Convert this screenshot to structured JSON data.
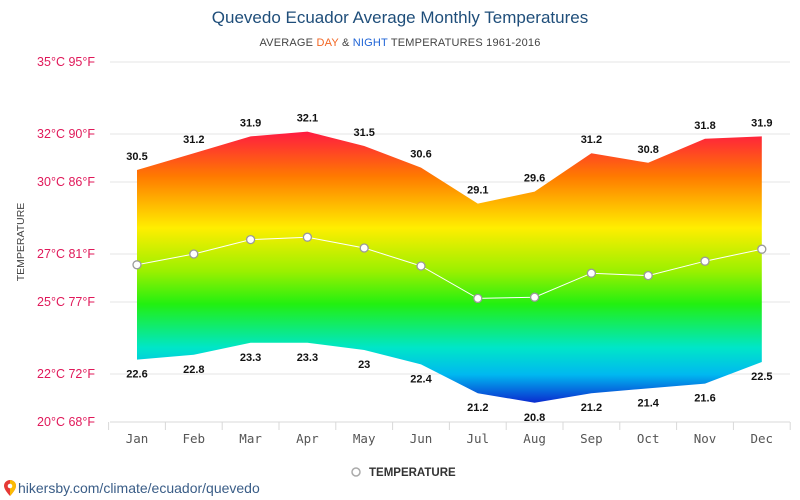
{
  "title": "Quevedo Ecuador Average Monthly Temperatures",
  "subtitle": {
    "prefix": "AVERAGE ",
    "day": "DAY",
    "mid": " & ",
    "night": "NIGHT",
    "suffix": " TEMPERATURES 1961-2016"
  },
  "colors": {
    "day_word": "#f26522",
    "night_word": "#1e63d6",
    "y_tick_labels": "#e0195a",
    "title": "#1f4e7a",
    "footer": "#3a5d87"
  },
  "footer_text": "hikersby.com/climate/ecuador/quevedo",
  "chart_data": {
    "type": "area",
    "title": "Quevedo Ecuador Average Monthly Temperatures",
    "subtitle": "AVERAGE DAY & NIGHT TEMPERATURES 1961-2016",
    "ylabel": "TEMPERATURE",
    "xlabel": "",
    "categories": [
      "Jan",
      "Feb",
      "Mar",
      "Apr",
      "May",
      "Jun",
      "Jul",
      "Aug",
      "Sep",
      "Oct",
      "Nov",
      "Dec"
    ],
    "ylim": [
      20,
      35
    ],
    "y_ticks": [
      {
        "value": 20,
        "label": "20°C 68°F"
      },
      {
        "value": 22,
        "label": "22°C 72°F"
      },
      {
        "value": 25,
        "label": "25°C 77°F"
      },
      {
        "value": 27,
        "label": "27°C 81°F"
      },
      {
        "value": 30,
        "label": "30°C 86°F"
      },
      {
        "value": 32,
        "label": "32°C 90°F"
      },
      {
        "value": 35,
        "label": "35°C 95°F"
      }
    ],
    "grid": true,
    "legend": {
      "placement": "bottom",
      "label": "TEMPERATURE"
    },
    "series": [
      {
        "role": "day",
        "values": [
          30.5,
          31.2,
          31.9,
          32.1,
          31.5,
          30.6,
          29.1,
          29.6,
          31.2,
          30.8,
          31.8,
          31.9
        ]
      },
      {
        "role": "night",
        "values": [
          22.6,
          22.8,
          23.3,
          23.3,
          23.0,
          22.4,
          21.2,
          20.8,
          21.2,
          21.4,
          21.6,
          22.5
        ]
      },
      {
        "name": "TEMPERATURE",
        "values": [
          26.55,
          27.0,
          27.6,
          27.7,
          27.25,
          26.5,
          25.15,
          25.2,
          26.2,
          26.1,
          26.7,
          27.2
        ]
      }
    ]
  }
}
